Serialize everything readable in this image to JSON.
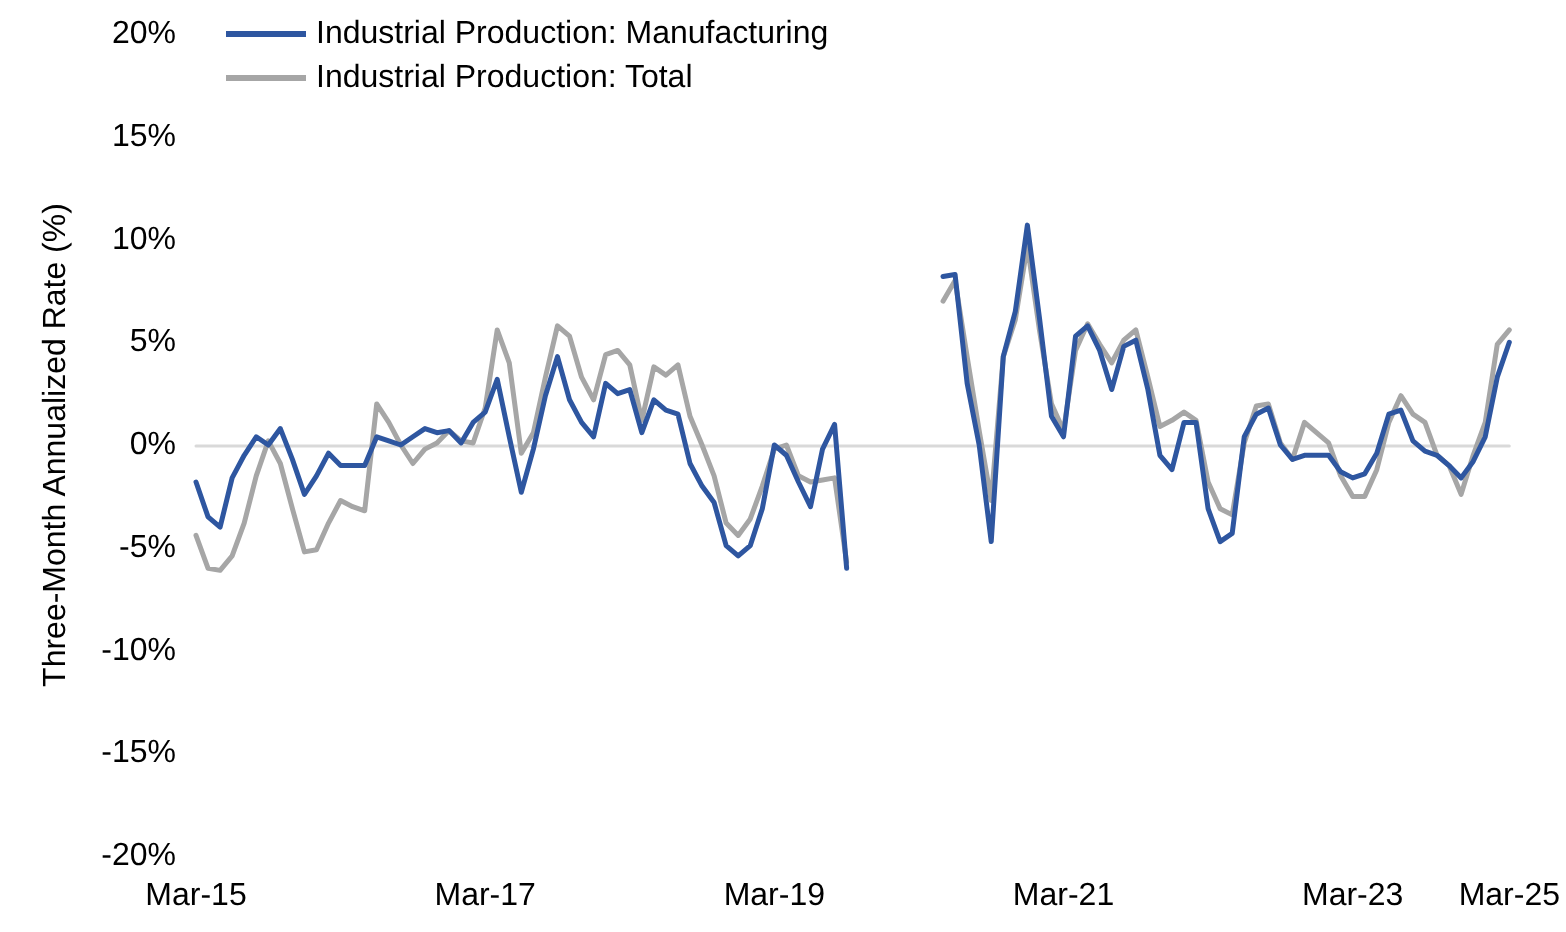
{
  "chart_data": {
    "type": "line",
    "ylabel": "Three-Month Annualized Rate (%)",
    "categories": [
      "Mar-15",
      null,
      null,
      null,
      null,
      null,
      null,
      null,
      null,
      null,
      null,
      null,
      null,
      null,
      null,
      null,
      null,
      null,
      null,
      null,
      null,
      null,
      null,
      null,
      "Mar-17",
      null,
      null,
      null,
      null,
      null,
      null,
      null,
      null,
      null,
      null,
      null,
      null,
      null,
      null,
      null,
      null,
      null,
      null,
      null,
      null,
      null,
      null,
      null,
      "Mar-19",
      null,
      null,
      null,
      null,
      null,
      null,
      null,
      null,
      null,
      null,
      null,
      null,
      null,
      null,
      null,
      null,
      null,
      null,
      null,
      null,
      null,
      null,
      null,
      "Mar-21",
      null,
      null,
      null,
      null,
      null,
      null,
      null,
      null,
      null,
      null,
      null,
      null,
      null,
      null,
      null,
      null,
      null,
      null,
      null,
      null,
      null,
      null,
      null,
      "Mar-23",
      null,
      null,
      null,
      null,
      null,
      null,
      null,
      null,
      null,
      null,
      null,
      null,
      "Mar-25"
    ],
    "series": [
      {
        "name": "Industrial Production: Manufacturing",
        "color": "#2e56a0",
        "values": [
          -1.8,
          -3.5,
          -4.0,
          -1.6,
          -0.5,
          0.4,
          0,
          0.8,
          -0.7,
          -2.4,
          -1.5,
          -0.4,
          -1.0,
          -1.0,
          -1.0,
          0.4,
          0.2,
          0,
          0.4,
          0.8,
          0.6,
          0.7,
          0.1,
          1.1,
          1.6,
          3.2,
          0.4,
          -2.3,
          -0.2,
          2.4,
          4.3,
          2.2,
          1.1,
          0.4,
          3.0,
          2.5,
          2.7,
          0.6,
          2.2,
          1.7,
          1.5,
          -0.9,
          -2.0,
          -2.8,
          -4.9,
          -5.4,
          -4.9,
          -3.1,
          0,
          -0.5,
          -1.8,
          -3.0,
          -0.2,
          1.0,
          -6.0,
          null,
          null,
          null,
          null,
          null,
          null,
          null,
          8.2,
          8.3,
          3.0,
          0,
          -4.7,
          4.3,
          6.5,
          10.7,
          6.2,
          1.4,
          0.4,
          5.3,
          5.8,
          4.6,
          2.7,
          4.8,
          5.1,
          2.7,
          -0.5,
          -1.2,
          1.1,
          1.1,
          -3.1,
          -4.7,
          -4.3,
          0.4,
          1.5,
          1.8,
          0,
          -0.7,
          -0.5,
          -0.5,
          -0.5,
          -1.3,
          -1.6,
          -1.4,
          -0.4,
          1.5,
          1.7,
          0.2,
          -0.3,
          -0.5,
          -1.0,
          -1.6,
          -0.8,
          0.4,
          3.3,
          5.0
        ]
      },
      {
        "name": "Industrial Production: Total",
        "color": "#a6a6a6",
        "values": [
          -4.4,
          -6.0,
          -6.1,
          -5.4,
          -3.8,
          -1.5,
          0.2,
          -0.9,
          -3.1,
          -5.2,
          -5.1,
          -3.8,
          -2.7,
          -3.0,
          -3.2,
          2.0,
          1.1,
          0,
          -0.9,
          -0.2,
          0.1,
          0.7,
          0.2,
          0.1,
          1.8,
          5.6,
          4.0,
          -0.4,
          0.6,
          3.3,
          5.8,
          5.3,
          3.3,
          2.2,
          4.4,
          4.6,
          3.9,
          1.2,
          3.8,
          3.4,
          3.9,
          1.4,
          0,
          -1.5,
          -3.8,
          -4.4,
          -3.6,
          -2.0,
          -0.2,
          0,
          -1.5,
          -1.8,
          -1.7,
          -1.6,
          -5.7,
          null,
          null,
          null,
          null,
          null,
          null,
          null,
          7.0,
          8.0,
          4.3,
          0.7,
          -2.7,
          4.3,
          6.1,
          9.7,
          5.6,
          2.0,
          0.7,
          4.6,
          5.9,
          4.9,
          4.0,
          5.1,
          5.6,
          3.3,
          0.9,
          1.2,
          1.6,
          1.2,
          -1.8,
          -3.1,
          -3.4,
          0.1,
          1.9,
          2.0,
          0.1,
          -0.7,
          1.1,
          0.6,
          0.1,
          -1.5,
          -2.5,
          -2.5,
          -1.2,
          1.1,
          2.4,
          1.5,
          1.1,
          -0.5,
          -1.0,
          -2.4,
          -0.5,
          1.1,
          4.9,
          5.6
        ]
      }
    ],
    "ylim": [
      -20,
      20
    ],
    "yticks": [
      {
        "value": -20,
        "label": "-20%"
      },
      {
        "value": -15,
        "label": "-15%"
      },
      {
        "value": -10,
        "label": "-10%"
      },
      {
        "value": -5,
        "label": "-5%"
      },
      {
        "value": 0,
        "label": "0%"
      },
      {
        "value": 5,
        "label": "5%"
      },
      {
        "value": 10,
        "label": "10%"
      },
      {
        "value": 15,
        "label": "15%"
      },
      {
        "value": 20,
        "label": "20%"
      }
    ],
    "legend": "top left"
  }
}
